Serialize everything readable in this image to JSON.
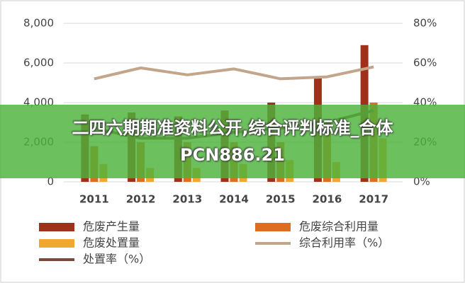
{
  "chart_data": {
    "type": "bar_line",
    "categories": [
      "2011",
      "2012",
      "2013",
      "2014",
      "2015",
      "2016",
      "2017"
    ],
    "series": [
      {
        "name": "危废产生量",
        "color": "#a1301a",
        "type": "bar",
        "values": [
          3400,
          3500,
          3300,
          3600,
          4000,
          5250,
          6900
        ]
      },
      {
        "name": "危废综合利用量",
        "color": "#e06c1e",
        "type": "bar",
        "values": [
          1800,
          2000,
          2000,
          2000,
          2000,
          3000,
          4000
        ]
      },
      {
        "name": "危废处置量",
        "color": "#f0a830",
        "type": "bar",
        "values": [
          900,
          700,
          700,
          900,
          1100,
          1000,
          2200
        ]
      },
      {
        "name": "综合利用率（%）",
        "color": "#c2a58a",
        "type": "line",
        "axis": "y2",
        "values": [
          52,
          57.5,
          54,
          57,
          52,
          53,
          58
        ]
      },
      {
        "name": "处置率（%）",
        "color": "#7a4a3a",
        "type": "line",
        "axis": "y2",
        "values": [
          27,
          22,
          22,
          25,
          27,
          30,
          36
        ]
      }
    ],
    "ylim": [
      0,
      8000
    ],
    "yticks": [
      0,
      {
        "value": 2000,
        "label": "2,000"
      },
      {
        "value": 4000,
        "label": "4,000"
      },
      {
        "value": 6000,
        "label": "6,000"
      },
      {
        "value": 8000,
        "label": "8,000"
      }
    ],
    "y2lim": [
      0,
      80
    ],
    "y2ticks": [
      {
        "value": 0,
        "label": "0%"
      },
      {
        "value": 20,
        "label": "20%"
      },
      {
        "value": 40,
        "label": "40%"
      },
      {
        "value": 60,
        "label": "60%"
      },
      {
        "value": 80,
        "label": "80%"
      }
    ],
    "grid": true
  },
  "banner_lines": [
    "二四六期期准资料公开,综合评判标准_合体",
    "PCN886.21"
  ]
}
